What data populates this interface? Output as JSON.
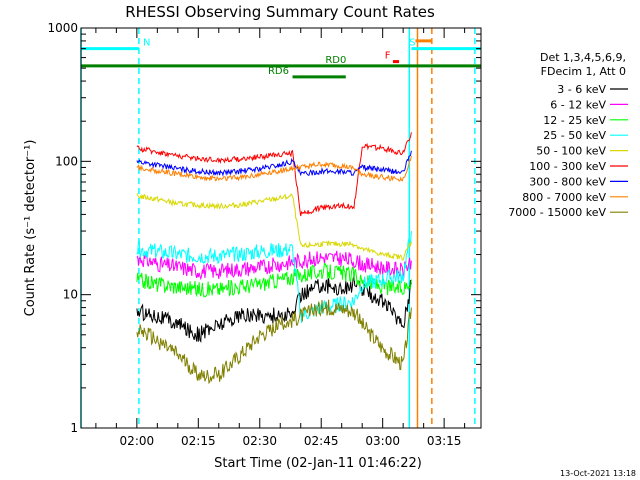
{
  "chart_data": {
    "type": "line",
    "title": "RHESSI Observing Summary Count Rates",
    "xlabel": "Start Time (02-Jan-11 01:46:22)",
    "ylabel": "Count Rate (s⁻¹ detector⁻¹)",
    "y_scale": "log",
    "ylim": [
      1,
      1000
    ],
    "xlim": [
      "01:46:22",
      "03:24:00"
    ],
    "x_ticks": [
      "02:00",
      "02:15",
      "02:30",
      "02:45",
      "03:00",
      "03:15"
    ],
    "y_ticks": [
      "1",
      "10",
      "100",
      "1000"
    ],
    "timestamp": "13-Oct-2021 13:18",
    "legend": {
      "placement": "right",
      "header": [
        "Det 1,3,4,5,6,9,",
        "FDecim 1, Att 0"
      ]
    },
    "series": [
      {
        "name": "3 - 6 keV",
        "color": "#000000",
        "x": [
          "02:00",
          "02:05",
          "02:10",
          "02:15",
          "02:20",
          "02:25",
          "02:30",
          "02:35",
          "02:38",
          "02:40",
          "02:45",
          "02:50",
          "02:53",
          "02:55",
          "03:00",
          "03:05",
          "03:07"
        ],
        "y": [
          7.5,
          7,
          6,
          5,
          6,
          7,
          7,
          7,
          7,
          10,
          12,
          11,
          12,
          11,
          9,
          6,
          12
        ]
      },
      {
        "name": "6 - 12 keV",
        "color": "#ff00ff",
        "x": [
          "02:00",
          "02:05",
          "02:10",
          "02:15",
          "02:20",
          "02:25",
          "02:30",
          "02:35",
          "02:38",
          "02:40",
          "02:45",
          "02:50",
          "02:53",
          "02:55",
          "03:00",
          "03:05",
          "03:07"
        ],
        "y": [
          19,
          17,
          16,
          15,
          15,
          15.5,
          16,
          17,
          17.5,
          18,
          19,
          18.5,
          18,
          17,
          16,
          15,
          18
        ]
      },
      {
        "name": "12 - 25 keV",
        "color": "#00ff00",
        "x": [
          "02:00",
          "02:05",
          "02:10",
          "02:15",
          "02:20",
          "02:25",
          "02:30",
          "02:35",
          "02:38",
          "02:40",
          "02:45",
          "02:50",
          "02:53",
          "02:55",
          "03:00",
          "03:05",
          "03:07"
        ],
        "y": [
          13,
          12,
          11.5,
          11,
          11,
          11.5,
          12,
          13,
          13.5,
          14,
          15,
          14.5,
          14,
          12.5,
          11.5,
          11,
          13
        ]
      },
      {
        "name": "25 - 50 keV",
        "color": "#00ffff",
        "x": [
          "02:00",
          "02:05",
          "02:10",
          "02:15",
          "02:20",
          "02:25",
          "02:30",
          "02:35",
          "02:38",
          "02:40",
          "02:45",
          "02:50",
          "02:53",
          "02:55",
          "03:00",
          "03:05",
          "03:07"
        ],
        "y": [
          22,
          21,
          20,
          19.5,
          19.5,
          20,
          21,
          21.5,
          22,
          7,
          8,
          8.5,
          9,
          12,
          13,
          14,
          30
        ]
      },
      {
        "name": "50 - 100 keV",
        "color": "#d8d800",
        "x": [
          "02:00",
          "02:05",
          "02:10",
          "02:15",
          "02:20",
          "02:25",
          "02:30",
          "02:35",
          "02:38",
          "02:40",
          "02:45",
          "02:50",
          "02:53",
          "02:55",
          "03:00",
          "03:05",
          "03:07"
        ],
        "y": [
          55,
          52,
          48,
          47,
          46,
          47,
          50,
          53,
          55,
          23,
          24,
          24,
          24,
          22,
          20,
          19,
          25
        ]
      },
      {
        "name": "100 - 300 keV",
        "color": "#ff0000",
        "x": [
          "02:00",
          "02:05",
          "02:10",
          "02:15",
          "02:20",
          "02:25",
          "02:30",
          "02:35",
          "02:38",
          "02:40",
          "02:45",
          "02:50",
          "02:53",
          "02:55",
          "03:00",
          "03:05",
          "03:07"
        ],
        "y": [
          125,
          118,
          110,
          105,
          102,
          104,
          108,
          113,
          115,
          40,
          45,
          47,
          45,
          130,
          125,
          115,
          165
        ]
      },
      {
        "name": "300 - 800 keV",
        "color": "#0000ff",
        "x": [
          "02:00",
          "02:05",
          "02:10",
          "02:15",
          "02:20",
          "02:25",
          "02:30",
          "02:35",
          "02:38",
          "02:40",
          "02:45",
          "02:50",
          "02:53",
          "02:55",
          "03:00",
          "03:05",
          "03:07"
        ],
        "y": [
          100,
          94,
          88,
          84,
          82,
          84,
          88,
          94,
          100,
          80,
          84,
          84,
          82,
          90,
          86,
          82,
          120
        ]
      },
      {
        "name": "800 - 7000 keV",
        "color": "#ff8000",
        "x": [
          "02:00",
          "02:05",
          "02:10",
          "02:15",
          "02:20",
          "02:25",
          "02:30",
          "02:35",
          "02:38",
          "02:40",
          "02:45",
          "02:50",
          "02:53",
          "02:55",
          "03:00",
          "03:05",
          "03:07"
        ],
        "y": [
          90,
          85,
          80,
          76,
          74,
          76,
          80,
          85,
          88,
          90,
          95,
          92,
          88,
          80,
          76,
          73,
          110
        ]
      },
      {
        "name": "7000 - 15000 keV",
        "color": "#808000",
        "x": [
          "02:00",
          "02:05",
          "02:10",
          "02:15",
          "02:20",
          "02:25",
          "02:30",
          "02:35",
          "02:38",
          "02:40",
          "02:45",
          "02:50",
          "02:53",
          "02:55",
          "03:00",
          "03:05",
          "03:07"
        ],
        "y": [
          5.5,
          4.5,
          3.5,
          2.5,
          2.5,
          3.5,
          5,
          6,
          6.5,
          7,
          8,
          8,
          7.5,
          6,
          4,
          3,
          8
        ]
      }
    ],
    "flags": [
      {
        "label": "N",
        "color": "#00ffff",
        "y": 700,
        "segments": [
          [
            "01:46:22",
            "02:00:30"
          ]
        ],
        "label_at": "02:01:30"
      },
      {
        "label": "S",
        "color": "#00ffff",
        "y": 700,
        "segments": [
          [
            "03:07:00",
            "03:24:00"
          ]
        ],
        "label_at": "03:06:30"
      },
      {
        "label": "RD0",
        "color": "#008000",
        "y": 520,
        "segments": [
          [
            "01:46:22",
            "03:24:00"
          ]
        ],
        "label_at": "02:46:00"
      },
      {
        "label": "RD6",
        "color": "#008000",
        "y": 430,
        "segments": [
          [
            "02:38:00",
            "02:51:00"
          ]
        ],
        "label_at": "02:32:00"
      },
      {
        "label": "F",
        "color": "#ff0000",
        "y": 560,
        "segments": [
          [
            "03:02:30",
            "03:04:00"
          ]
        ],
        "label_at": "03:00:30"
      },
      {
        "label": "",
        "color": "#ff8000",
        "y": 800,
        "segments": [
          [
            "03:08:00",
            "03:12:00"
          ]
        ],
        "label_at": ""
      }
    ],
    "vertical_lines": [
      {
        "x": "01:46:22",
        "color": "#00ffff",
        "style": "solid"
      },
      {
        "x": "02:00:30",
        "color": "#00ffff",
        "style": "dashed"
      },
      {
        "x": "03:06:30",
        "color": "#00ffff",
        "style": "solid"
      },
      {
        "x": "03:08:30",
        "color": "#ff8000",
        "style": "solid"
      },
      {
        "x": "03:12:00",
        "color": "#ff8000",
        "style": "dashed"
      },
      {
        "x": "03:22:30",
        "color": "#00ffff",
        "style": "dashed"
      }
    ]
  }
}
